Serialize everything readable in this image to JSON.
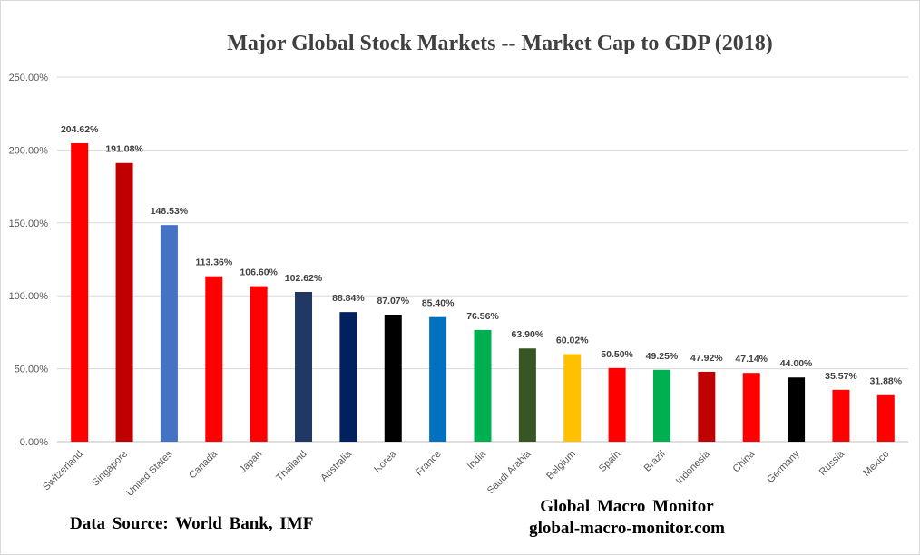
{
  "chart_data": {
    "type": "bar",
    "title": "Major Global Stock Markets -- Market Cap to GDP (2018)",
    "xlabel": "",
    "ylabel": "",
    "ylim": [
      0,
      250
    ],
    "yticks": [
      "0.00%",
      "50.00%",
      "100.00%",
      "150.00%",
      "200.00%",
      "250.00%"
    ],
    "grid": true,
    "legend": "none",
    "categories": [
      "Switzerland",
      "Singapore",
      "United States",
      "Canada",
      "Japan",
      "Thailand",
      "Australia",
      "Korea",
      "France",
      "India",
      "Saudi Arabia",
      "Belgium",
      "Spain",
      "Brazil",
      "Indonesia",
      "China",
      "Germany",
      "Russia",
      "Mexico"
    ],
    "values": [
      204.62,
      191.08,
      148.53,
      113.36,
      106.6,
      102.62,
      88.84,
      87.07,
      85.4,
      76.56,
      63.9,
      60.02,
      50.5,
      49.25,
      47.92,
      47.14,
      44.0,
      35.57,
      31.88
    ],
    "data_labels": [
      "204.62%",
      "191.08%",
      "148.53%",
      "113.36%",
      "106.60%",
      "102.62%",
      "88.84%",
      "87.07%",
      "85.40%",
      "76.56%",
      "63.90%",
      "60.02%",
      "50.50%",
      "49.25%",
      "47.92%",
      "47.14%",
      "44.00%",
      "35.57%",
      "31.88%"
    ],
    "colors": [
      "#ff0000",
      "#c00000",
      "#4472c4",
      "#ff0000",
      "#ff0000",
      "#203864",
      "#002060",
      "#000000",
      "#0070c0",
      "#00b050",
      "#375623",
      "#ffc000",
      "#ff0000",
      "#00b050",
      "#c00000",
      "#ff0000",
      "#000000",
      "#ff0000",
      "#ff0000"
    ]
  },
  "footer": {
    "source": "Data Source:  World  Bank, IMF",
    "credit_name": "Global  Macro  Monitor",
    "credit_site": "global-macro-monitor.com"
  }
}
